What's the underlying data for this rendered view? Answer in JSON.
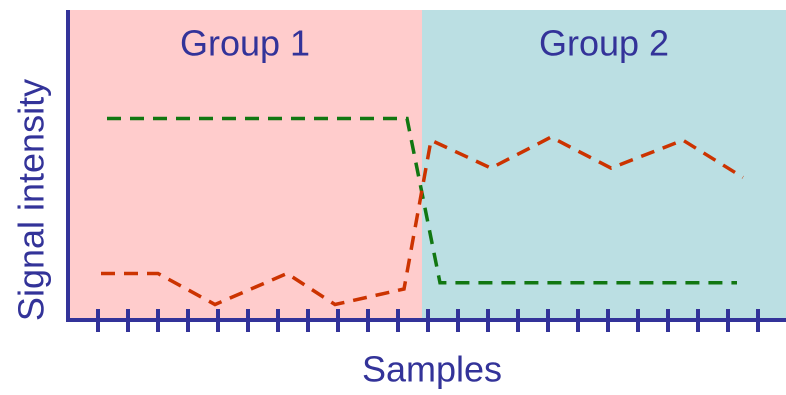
{
  "chart_data": {
    "type": "line",
    "xlabel": "Samples",
    "ylabel": "Signal intensity",
    "xlim": [
      0,
      24
    ],
    "ylim": [
      0,
      10
    ],
    "xticks": [
      1,
      2,
      3,
      4,
      5,
      6,
      7,
      8,
      9,
      10,
      11,
      12,
      13,
      14,
      15,
      16,
      17,
      18,
      19,
      20,
      21,
      22,
      23
    ],
    "groups": [
      {
        "label": "Group 1",
        "range": [
          0,
          11.8
        ],
        "color": "#ffcccc"
      },
      {
        "label": "Group 2",
        "range": [
          11.8,
          24
        ],
        "color": "#bbdfe3"
      }
    ],
    "series": [
      {
        "color": "#117711",
        "x": [
          1.3,
          11.3,
          12.4,
          22.3
        ],
        "values": [
          6.5,
          6.5,
          1.2,
          1.2
        ]
      },
      {
        "color": "#cc3300",
        "x": [
          1.1,
          3,
          4.9,
          7.3,
          8.9,
          11.2,
          12.1,
          14.1,
          16.1,
          18.1,
          20.5,
          22.5
        ],
        "values": [
          1.5,
          1.5,
          0.5,
          1.5,
          0.5,
          1.0,
          5.8,
          4.9,
          5.9,
          4.9,
          5.8,
          4.6
        ]
      }
    ],
    "axis_color": "#333399"
  }
}
